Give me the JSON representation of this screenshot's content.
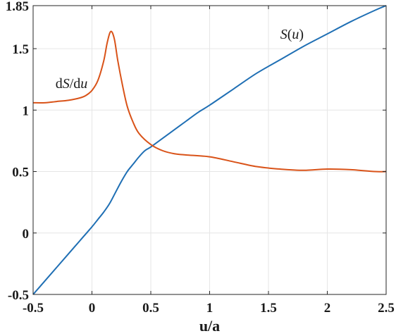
{
  "chart_data": {
    "type": "line",
    "title": "",
    "xlabel": "u/a",
    "ylabel": "",
    "xlim": [
      -0.5,
      2.5
    ],
    "ylim": [
      -0.5,
      1.85
    ],
    "grid": true,
    "xticks": [
      -0.5,
      0,
      0.5,
      1,
      1.5,
      2,
      2.5
    ],
    "xtick_labels": [
      "-0.5",
      "0",
      "0.5",
      "1",
      "1.5",
      "2",
      "2.5"
    ],
    "yticks": [
      -0.5,
      0,
      0.5,
      1,
      1.5,
      1.85
    ],
    "ytick_labels": [
      "-0.5",
      "0",
      "0.5",
      "1",
      "1.5",
      "1.85"
    ],
    "series": [
      {
        "name": "S(u)",
        "color": "#1f6fb4",
        "x": [
          -0.5,
          -0.4,
          -0.3,
          -0.2,
          -0.1,
          0.0,
          0.05,
          0.1,
          0.15,
          0.2,
          0.25,
          0.3,
          0.35,
          0.4,
          0.45,
          0.5,
          0.6,
          0.7,
          0.8,
          0.9,
          1.0,
          1.2,
          1.4,
          1.6,
          1.8,
          2.0,
          2.2,
          2.4,
          2.5
        ],
        "values": [
          -0.5,
          -0.39,
          -0.28,
          -0.17,
          -0.06,
          0.05,
          0.11,
          0.17,
          0.24,
          0.33,
          0.42,
          0.5,
          0.56,
          0.62,
          0.67,
          0.7,
          0.77,
          0.84,
          0.91,
          0.98,
          1.04,
          1.17,
          1.3,
          1.41,
          1.52,
          1.62,
          1.72,
          1.81,
          1.85
        ]
      },
      {
        "name": "dS/du",
        "color": "#d95319",
        "x": [
          -0.5,
          -0.4,
          -0.3,
          -0.2,
          -0.1,
          -0.05,
          0.0,
          0.05,
          0.1,
          0.13,
          0.16,
          0.19,
          0.22,
          0.26,
          0.3,
          0.35,
          0.4,
          0.5,
          0.6,
          0.7,
          0.8,
          1.0,
          1.2,
          1.4,
          1.6,
          1.8,
          2.0,
          2.2,
          2.4,
          2.5
        ],
        "values": [
          1.06,
          1.06,
          1.07,
          1.08,
          1.1,
          1.12,
          1.16,
          1.24,
          1.4,
          1.55,
          1.64,
          1.58,
          1.4,
          1.2,
          1.03,
          0.9,
          0.81,
          0.72,
          0.67,
          0.645,
          0.635,
          0.62,
          0.58,
          0.54,
          0.52,
          0.51,
          0.52,
          0.515,
          0.5,
          0.5
        ]
      }
    ],
    "annotations": [
      {
        "label_parts": [
          "S",
          "(",
          "u",
          ")"
        ],
        "italic": [
          true,
          false,
          true,
          false
        ],
        "x": 1.6,
        "y": 1.58
      },
      {
        "label_parts": [
          "d",
          "S",
          "/d",
          "u"
        ],
        "italic": [
          false,
          true,
          false,
          true
        ],
        "x": -0.31,
        "y": 1.18
      }
    ]
  }
}
